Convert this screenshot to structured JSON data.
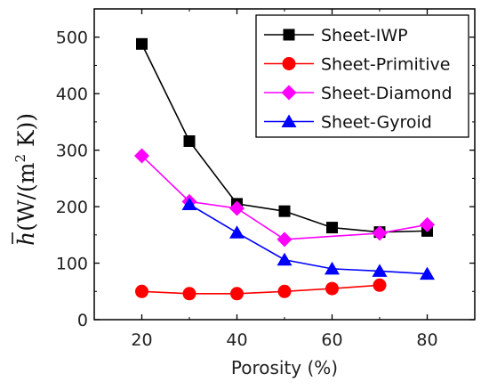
{
  "chart_data": {
    "type": "line",
    "xlabel": "Porosity (%)",
    "ylabel": {
      "symbol": "h",
      "text": "(W/(m",
      "sup": "2",
      "text_end": " K))"
    },
    "xlim": [
      10,
      90
    ],
    "ylim": [
      0,
      550
    ],
    "xticks": [
      20,
      40,
      60,
      80
    ],
    "yticks": [
      0,
      100,
      200,
      300,
      400,
      500
    ],
    "legend_position": "top-right",
    "grid": false,
    "series": [
      {
        "name": "Sheet-IWP",
        "color": "#000000",
        "marker": "square",
        "x": [
          20,
          30,
          40,
          50,
          60,
          70,
          80
        ],
        "y": [
          488,
          316,
          205,
          192,
          163,
          155,
          157
        ]
      },
      {
        "name": "Sheet-Primitive",
        "color": "#ff0000",
        "marker": "circle",
        "x": [
          20,
          30,
          40,
          50,
          60,
          70
        ],
        "y": [
          50,
          46,
          46,
          50,
          55,
          61
        ]
      },
      {
        "name": "Sheet-Diamond",
        "color": "#ff00ff",
        "marker": "diamond",
        "x": [
          20,
          30,
          40,
          50,
          60,
          70,
          80
        ],
        "y": [
          290,
          209,
          197,
          142,
          null,
          153,
          168
        ]
      },
      {
        "name": "Sheet-Gyroid",
        "color": "#0000ff",
        "marker": "triangle",
        "x": [
          30,
          40,
          50,
          60,
          70,
          80
        ],
        "y": [
          204,
          154,
          106,
          90,
          86,
          81
        ]
      }
    ]
  }
}
